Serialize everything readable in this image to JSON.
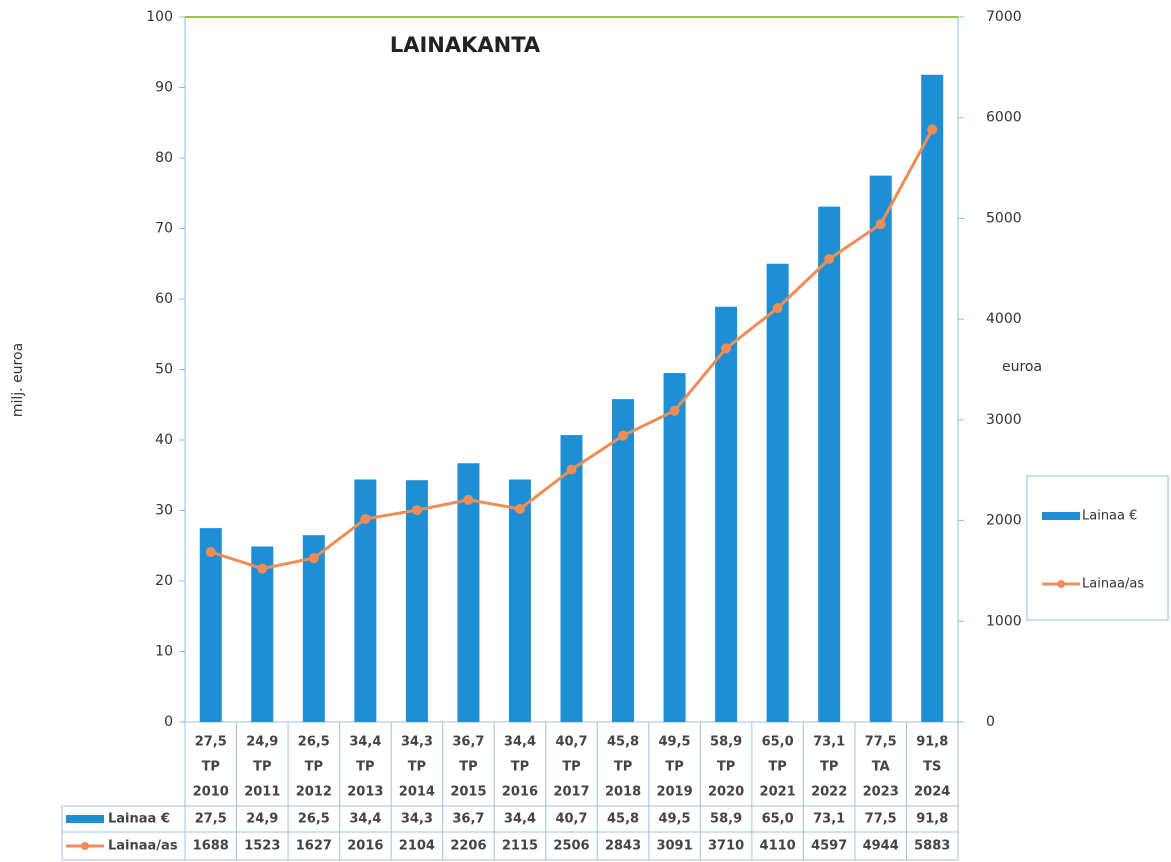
{
  "chart_data": {
    "type": "bar-line",
    "title": "LAINAKANTA",
    "y_label": "milj. euroa",
    "y2_label": "euroa",
    "categories": [
      [
        "27,5",
        "TP",
        "2010"
      ],
      [
        "24,9",
        "TP",
        "2011"
      ],
      [
        "26,5",
        "TP",
        "2012"
      ],
      [
        "34,4",
        "TP",
        "2013"
      ],
      [
        "34,3",
        "TP",
        "2014"
      ],
      [
        "36,7",
        "TP",
        "2015"
      ],
      [
        "34,4",
        "TP",
        "2016"
      ],
      [
        "40,7",
        "TP",
        "2017"
      ],
      [
        "45,8",
        "TP",
        "2018"
      ],
      [
        "49,5",
        "TP",
        "2019"
      ],
      [
        "58,9",
        "TP",
        "2020"
      ],
      [
        "65,0",
        "TP",
        "2021"
      ],
      [
        "73,1",
        "TP",
        "2022"
      ],
      [
        "77,5",
        "TA",
        "2023"
      ],
      [
        "91,8",
        "TS",
        "2024"
      ]
    ],
    "series": [
      {
        "name": "Lainaa €",
        "type": "bar",
        "color": "#1e8fd5",
        "values": [
          27.5,
          24.9,
          26.5,
          34.4,
          34.3,
          36.7,
          34.4,
          40.7,
          45.8,
          49.5,
          58.9,
          65.0,
          73.1,
          77.5,
          91.8
        ],
        "value_labels": [
          "27,5",
          "24,9",
          "26,5",
          "34,4",
          "34,3",
          "36,7",
          "34,4",
          "40,7",
          "45,8",
          "49,5",
          "58,9",
          "65,0",
          "73,1",
          "77,5",
          "91,8"
        ]
      },
      {
        "name": "Lainaa/as",
        "type": "line",
        "axis": "y2",
        "color": "#f08c55",
        "values": [
          1688,
          1523,
          1627,
          2016,
          2104,
          2206,
          2115,
          2506,
          2843,
          3091,
          3710,
          4110,
          4597,
          4944,
          5883
        ]
      }
    ],
    "ylim": [
      0,
      100
    ],
    "yticks": [
      0,
      10,
      20,
      30,
      40,
      50,
      60,
      70,
      80,
      90,
      100
    ],
    "y2lim": [
      0,
      7000
    ],
    "y2ticks": [
      0,
      1000,
      2000,
      3000,
      4000,
      5000,
      6000,
      7000
    ],
    "legend": "right",
    "data_table": true
  }
}
